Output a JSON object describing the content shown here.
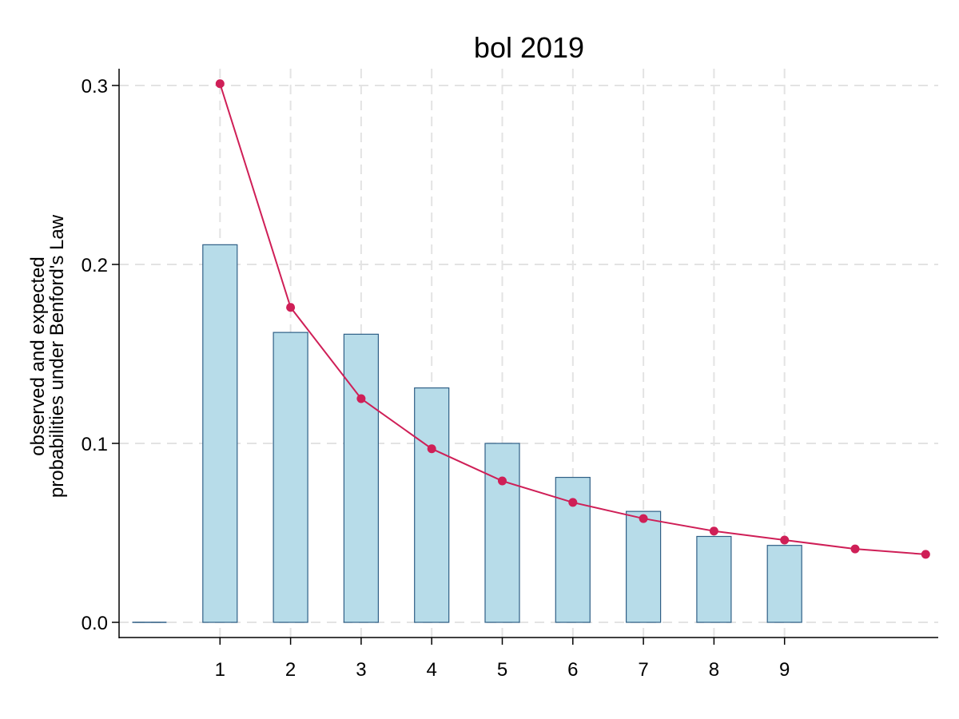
{
  "chart_data": {
    "type": "bar",
    "title": "bol 2019",
    "ylabel_lines": [
      "observed and expected",
      "probabilities under Benford's Law"
    ],
    "xlabel": "",
    "x_ticks": [
      "1",
      "2",
      "3",
      "4",
      "5",
      "6",
      "7",
      "8",
      "9"
    ],
    "y_ticks": [
      "0.0",
      "0.1",
      "0.2",
      "0.3"
    ],
    "ylim": [
      0,
      0.3
    ],
    "grid": true,
    "series": [
      {
        "type": "bar",
        "x": [
          0,
          1,
          2,
          3,
          4,
          5,
          6,
          7,
          8,
          9
        ],
        "values": [
          0.0,
          0.211,
          0.162,
          0.161,
          0.131,
          0.1,
          0.081,
          0.062,
          0.048,
          0.043
        ]
      },
      {
        "type": "line",
        "x": [
          1,
          2,
          3,
          4,
          5,
          6,
          7,
          8,
          9,
          10,
          11
        ],
        "values": [
          0.301,
          0.176,
          0.125,
          0.097,
          0.079,
          0.067,
          0.058,
          0.051,
          0.046,
          0.041,
          0.038
        ]
      }
    ],
    "colors": {
      "bar_fill": "#b7dce9",
      "bar_stroke": "#2f5f86",
      "line": "#cf1f57",
      "grid": "#e3e3e3",
      "axis": "#000000"
    }
  }
}
